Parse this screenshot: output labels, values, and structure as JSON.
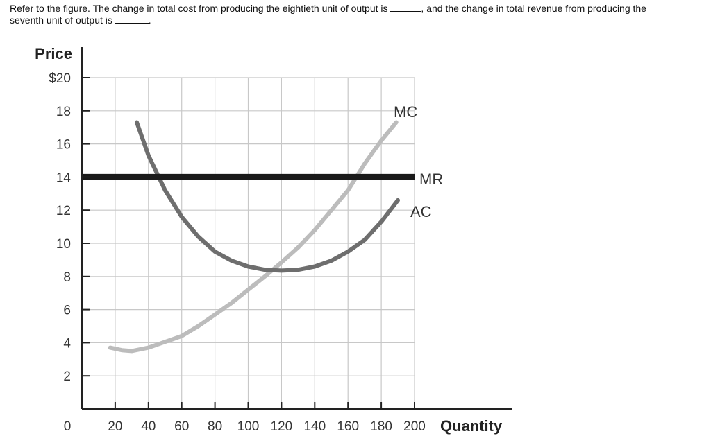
{
  "question": {
    "part1": "Refer to the figure. The change in total cost from producing the eightieth unit of output is",
    "part2": ", and the change in total revenue from producing the",
    "part3": "seventh unit of output is",
    "part4": "."
  },
  "chart_data": {
    "type": "line",
    "ylabel": "Price",
    "xlabel": "Quantity",
    "xlim": [
      0,
      200
    ],
    "ylim": [
      0,
      20
    ],
    "x_ticks": [
      "0",
      "20",
      "40",
      "60",
      "80",
      "100",
      "120",
      "140",
      "160",
      "180",
      "200"
    ],
    "y_ticks": [
      "$20",
      "18",
      "16",
      "14",
      "12",
      "10",
      "8",
      "6",
      "4",
      "2"
    ],
    "grid": true,
    "series": [
      {
        "name": "MC",
        "color": "#bcbcbc",
        "points": [
          [
            17,
            3.7
          ],
          [
            24,
            3.55
          ],
          [
            30,
            3.5
          ],
          [
            40,
            3.7
          ],
          [
            50,
            4.05
          ],
          [
            60,
            4.4
          ],
          [
            70,
            5.0
          ],
          [
            80,
            5.7
          ],
          [
            90,
            6.4
          ],
          [
            100,
            7.2
          ],
          [
            110,
            8.0
          ],
          [
            120,
            8.85
          ],
          [
            130,
            9.75
          ],
          [
            140,
            10.8
          ],
          [
            150,
            12.0
          ],
          [
            160,
            13.2
          ],
          [
            165,
            14.0
          ],
          [
            170,
            14.8
          ],
          [
            180,
            16.2
          ],
          [
            189,
            17.3
          ]
        ]
      },
      {
        "name": "AC",
        "color": "#6e6e6e",
        "points": [
          [
            33,
            17.3
          ],
          [
            40,
            15.3
          ],
          [
            50,
            13.2
          ],
          [
            60,
            11.6
          ],
          [
            70,
            10.4
          ],
          [
            80,
            9.5
          ],
          [
            90,
            8.95
          ],
          [
            100,
            8.6
          ],
          [
            110,
            8.4
          ],
          [
            120,
            8.35
          ],
          [
            130,
            8.4
          ],
          [
            140,
            8.6
          ],
          [
            150,
            8.95
          ],
          [
            160,
            9.5
          ],
          [
            170,
            10.2
          ],
          [
            180,
            11.3
          ],
          [
            190,
            12.6
          ]
        ]
      },
      {
        "name": "MR",
        "color": "#1a1a1a",
        "points": [
          [
            0,
            14
          ],
          [
            200,
            14
          ]
        ]
      }
    ]
  }
}
